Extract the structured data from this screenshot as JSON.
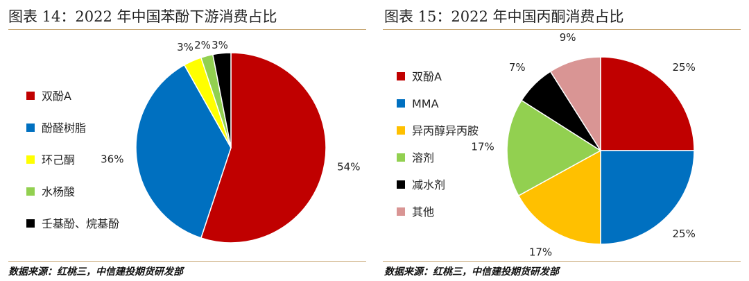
{
  "charts": [
    {
      "figure_title": "图表 14：2022 年中国苯酚下游消费占比",
      "source": "数据来源：红桃三，中信建投期货研发部"
    },
    {
      "figure_title": "图表 15：2022 年中国丙酮消费占比",
      "source": "数据来源：红桃三，中信建投期货研发部"
    }
  ],
  "chart_data": [
    {
      "type": "pie",
      "title": "",
      "legend_position": "left",
      "slices": [
        {
          "name": "双酚A",
          "value": 54,
          "label": "54%",
          "color": "#c00000"
        },
        {
          "name": "酚醛树脂",
          "value": 36,
          "label": "36%",
          "color": "#0070c0"
        },
        {
          "name": "环己酮",
          "value": 3,
          "label": "3%",
          "color": "#ffff00"
        },
        {
          "name": "水杨酸",
          "value": 2,
          "label": "2%",
          "color": "#92d050"
        },
        {
          "name": "壬基酚、烷基酚",
          "value": 3,
          "label": "3%",
          "color": "#000000"
        }
      ]
    },
    {
      "type": "pie",
      "title": "",
      "legend_position": "left",
      "slices": [
        {
          "name": "双酚A",
          "value": 25,
          "label": "25%",
          "color": "#c00000"
        },
        {
          "name": "MMA",
          "value": 25,
          "label": "25%",
          "color": "#0070c0"
        },
        {
          "name": "异丙醇异丙胺",
          "value": 17,
          "label": "17%",
          "color": "#ffc000"
        },
        {
          "name": "溶剂",
          "value": 17,
          "label": "17%",
          "color": "#92d050"
        },
        {
          "name": "减水剂",
          "value": 7,
          "label": "7%",
          "color": "#000000"
        },
        {
          "name": "其他",
          "value": 9,
          "label": "9%",
          "color": "#d99594"
        }
      ]
    }
  ]
}
